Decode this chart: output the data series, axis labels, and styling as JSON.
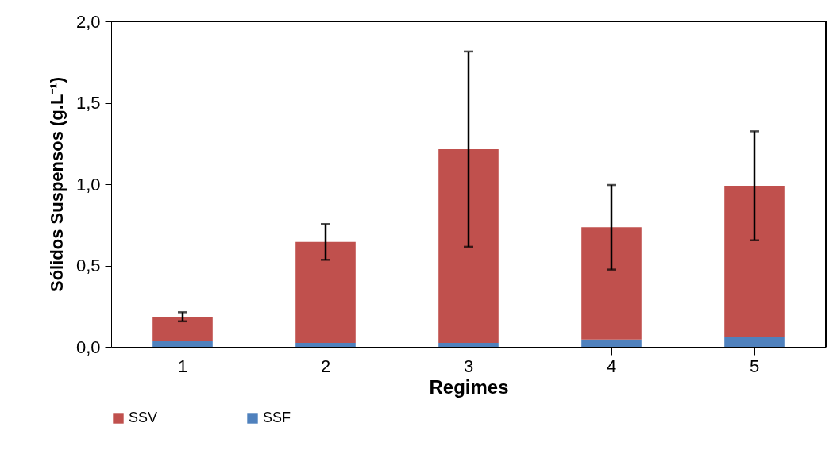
{
  "chart_data": {
    "type": "bar",
    "stacked": true,
    "xlabel": "Regimes",
    "ylabel": "Sólidos Suspensos (g.L⁻¹)",
    "categories": [
      "1",
      "2",
      "3",
      "4",
      "5"
    ],
    "series": [
      {
        "name": "SSF",
        "color": "#4f81bd",
        "values": [
          0.035,
          0.025,
          0.025,
          0.045,
          0.06
        ]
      },
      {
        "name": "SSV",
        "color": "#c0504d",
        "values": [
          0.15,
          0.62,
          1.19,
          0.69,
          0.93
        ],
        "errors": [
          0.028,
          0.11,
          0.6,
          0.26,
          0.335
        ]
      }
    ],
    "ylim": [
      0,
      2
    ],
    "yticks": [
      {
        "value": 0,
        "label": "0,0"
      },
      {
        "value": 0.5,
        "label": "0,5"
      },
      {
        "value": 1,
        "label": "1,0"
      },
      {
        "value": 1.5,
        "label": "1,5"
      },
      {
        "value": 2,
        "label": "2,0"
      }
    ],
    "grid": false,
    "legend": "bottom"
  }
}
